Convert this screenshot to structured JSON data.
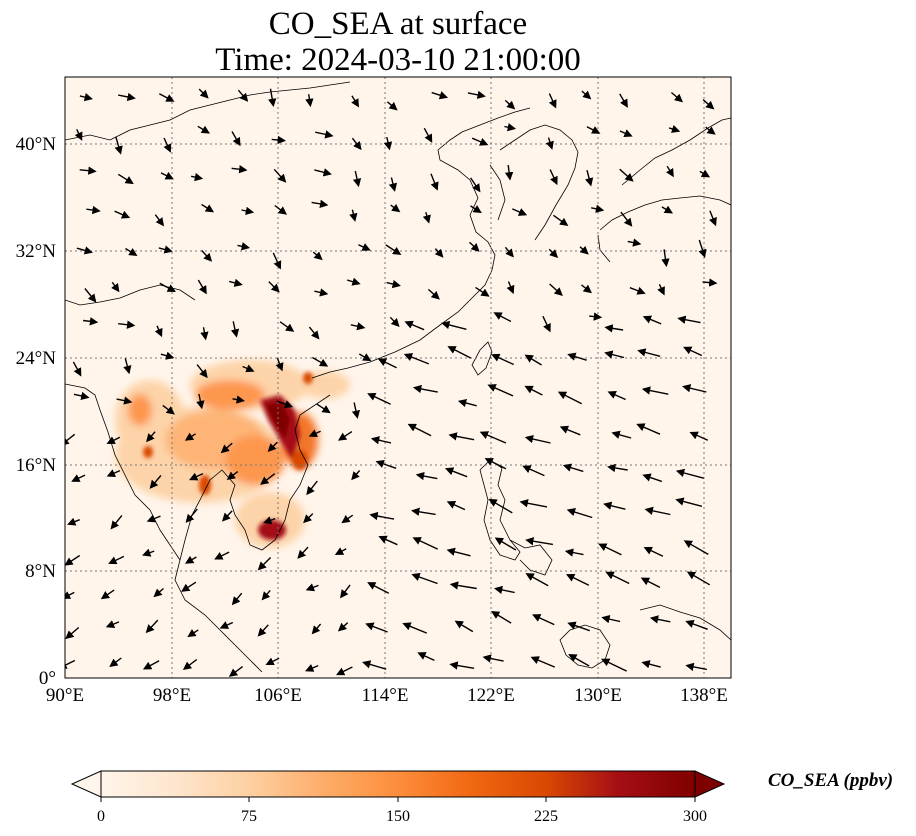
{
  "title": {
    "line1": "CO_SEA at surface",
    "line2": "Time: 2024-03-10 21:00:00"
  },
  "map": {
    "extent": {
      "lon": [
        90,
        140
      ],
      "lat": [
        0,
        45
      ]
    },
    "lon_ticks": [
      "90°E",
      "98°E",
      "106°E",
      "114°E",
      "122°E",
      "130°E",
      "138°E"
    ],
    "lat_ticks": [
      "0°",
      "8°N",
      "16°N",
      "24°N",
      "32°N",
      "40°N"
    ],
    "gridlines": true,
    "background_color": "#fff5eb",
    "coastline_color": "#000000",
    "plume_colors": [
      "#fdd0a2",
      "#f16913",
      "#d94801",
      "#a50f15",
      "#7f0000"
    ]
  },
  "colorbar": {
    "label": "CO_SEA (ppbv)",
    "ticks": [
      "0",
      "75",
      "150",
      "225",
      "300"
    ],
    "range": [
      0,
      300
    ],
    "extend": "both",
    "colormap": [
      "#fff5eb",
      "#fee6ce",
      "#fdd0a2",
      "#fdae6b",
      "#fd8d3c",
      "#f16913",
      "#d94801",
      "#a50f15",
      "#7f0000"
    ]
  }
}
